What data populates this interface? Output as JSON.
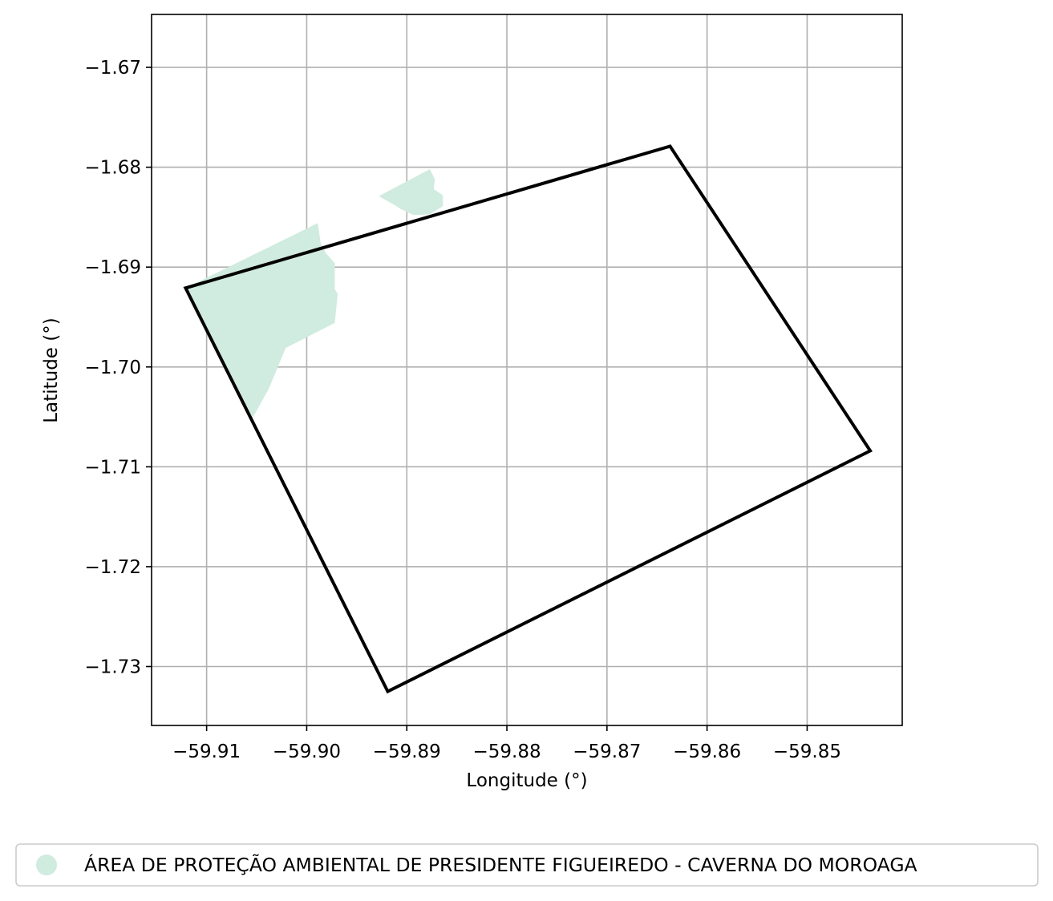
{
  "chart_data": {
    "type": "map",
    "xlabel": "Longitude (°)",
    "ylabel": "Latitude (°)",
    "xlim": [
      -59.9155,
      -59.8405
    ],
    "ylim": [
      -1.7359,
      -1.6647
    ],
    "grid": true,
    "x_ticks": [
      {
        "value": -59.91,
        "label": "−59.91"
      },
      {
        "value": -59.9,
        "label": "−59.90"
      },
      {
        "value": -59.89,
        "label": "−59.89"
      },
      {
        "value": -59.88,
        "label": "−59.88"
      },
      {
        "value": -59.87,
        "label": "−59.87"
      },
      {
        "value": -59.86,
        "label": "−59.86"
      },
      {
        "value": -59.85,
        "label": "−59.85"
      }
    ],
    "y_ticks": [
      {
        "value": -1.67,
        "label": "−1.67"
      },
      {
        "value": -1.68,
        "label": "−1.68"
      },
      {
        "value": -1.69,
        "label": "−1.69"
      },
      {
        "value": -1.7,
        "label": "−1.70"
      },
      {
        "value": -1.71,
        "label": "−1.71"
      },
      {
        "value": -1.72,
        "label": "−1.72"
      },
      {
        "value": -1.73,
        "label": "−1.73"
      }
    ],
    "footprint": {
      "color": "#000000",
      "coordinates": [
        [
          -59.9121,
          -1.6921
        ],
        [
          -59.8637,
          -1.6779
        ],
        [
          -59.8437,
          -1.7084
        ],
        [
          -59.8919,
          -1.7325
        ]
      ]
    },
    "areas": [
      {
        "name": "ÁREA DE PROTEÇÃO AMBIENTAL DE PRESIDENTE FIGUEIREDO - CAVERNA DO MOROAGA",
        "color": "#d0ebdf",
        "polygons": [
          [
            [
              -59.9121,
              -1.6921
            ],
            [
              -59.8989,
              -1.6856
            ],
            [
              -59.8986,
              -1.6876
            ],
            [
              -59.8981,
              -1.6886
            ],
            [
              -59.8972,
              -1.6896
            ],
            [
              -59.8972,
              -1.6922
            ],
            [
              -59.8969,
              -1.6927
            ],
            [
              -59.8972,
              -1.6956
            ],
            [
              -59.9021,
              -1.6981
            ],
            [
              -59.9038,
              -1.7022
            ],
            [
              -59.9054,
              -1.7051
            ]
          ],
          [
            [
              -59.8928,
              -1.6829
            ],
            [
              -59.8877,
              -1.6802
            ],
            [
              -59.8872,
              -1.6812
            ],
            [
              -59.8873,
              -1.6822
            ],
            [
              -59.8864,
              -1.6828
            ],
            [
              -59.8864,
              -1.6839
            ],
            [
              -59.8877,
              -1.6847
            ],
            [
              -59.8893,
              -1.6848
            ],
            [
              -59.8906,
              -1.6842
            ],
            [
              -59.8912,
              -1.6838
            ]
          ]
        ]
      }
    ]
  }
}
